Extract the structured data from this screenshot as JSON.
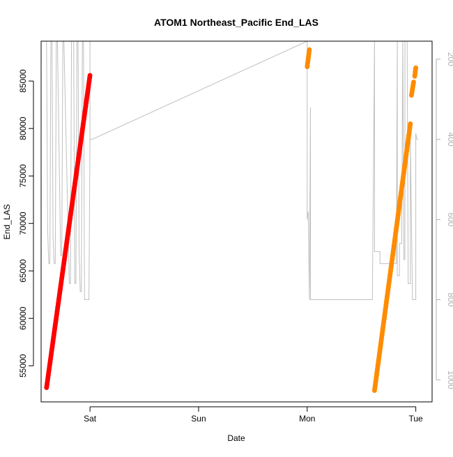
{
  "chart_data": {
    "type": "scatter",
    "title": "ATOM1 Northeast_Pacific End_LAS",
    "xlabel": "Date",
    "ylabel": "End_LAS",
    "x_ticks": [
      "Sat",
      "Sun",
      "Mon",
      "Tue"
    ],
    "x_tick_positions": [
      1,
      2,
      3,
      4
    ],
    "xlim": [
      0.55,
      4.15
    ],
    "y_ticks": [
      55000,
      60000,
      65000,
      70000,
      75000,
      80000,
      85000
    ],
    "y_tick_labels": [
      "55000",
      "60000",
      "65000",
      "70000",
      "75000",
      "80000",
      "85000"
    ],
    "ylim": [
      51200,
      89200
    ],
    "y2_ticks": [
      200,
      400,
      600,
      800,
      1000
    ],
    "y2_tick_labels": [
      "200",
      "400",
      "600",
      "800",
      "1000"
    ],
    "y2_lim": [
      155,
      1055
    ],
    "colors": {
      "series_1": "#ff0000",
      "series_2": "#ff8c00",
      "depth_line": "#bfbfbf"
    },
    "series": [
      {
        "color": "#ff0000",
        "segments": [
          {
            "x_start": 0.6,
            "y_start": 52700,
            "x_end": 1.0,
            "y_end": 85600
          }
        ]
      },
      {
        "color": "#ff8c00",
        "segments": [
          {
            "x_start": 3.0,
            "y_start": 86500,
            "x_end": 3.02,
            "y_end": 88300
          },
          {
            "x_start": 3.62,
            "y_start": 52400,
            "x_end": 3.95,
            "y_end": 80500
          },
          {
            "x_start": 3.96,
            "y_start": 83500,
            "x_end": 3.98,
            "y_end": 84900
          },
          {
            "x_start": 3.99,
            "y_start": 85500,
            "x_end": 4.0,
            "y_end": 86400
          }
        ]
      }
    ],
    "depth_line_axis": "right",
    "depth_line": [
      [
        0.6,
        155
      ],
      [
        0.61,
        620
      ],
      [
        0.62,
        710
      ],
      [
        0.63,
        710
      ],
      [
        0.64,
        155
      ],
      [
        0.65,
        155
      ],
      [
        0.66,
        640
      ],
      [
        0.67,
        710
      ],
      [
        0.68,
        710
      ],
      [
        0.69,
        155
      ],
      [
        0.7,
        155
      ],
      [
        0.73,
        690
      ],
      [
        0.74,
        690
      ],
      [
        0.75,
        155
      ],
      [
        0.76,
        155
      ],
      [
        0.8,
        650
      ],
      [
        0.81,
        760
      ],
      [
        0.82,
        760
      ],
      [
        0.83,
        155
      ],
      [
        0.85,
        155
      ],
      [
        0.86,
        760
      ],
      [
        0.87,
        760
      ],
      [
        0.88,
        155
      ],
      [
        0.89,
        155
      ],
      [
        0.9,
        680
      ],
      [
        0.91,
        780
      ],
      [
        0.92,
        780
      ],
      [
        0.93,
        155
      ],
      [
        0.94,
        155
      ],
      [
        0.95,
        800
      ],
      [
        0.99,
        800
      ],
      [
        1.0,
        400
      ],
      [
        1.0,
        155
      ],
      [
        1.0,
        400
      ],
      [
        1.02,
        400
      ],
      [
        3.0,
        155
      ],
      [
        3.0,
        600
      ],
      [
        3.01,
        580
      ],
      [
        3.02,
        800
      ],
      [
        3.03,
        320
      ],
      [
        3.03,
        800
      ],
      [
        3.6,
        800
      ],
      [
        3.62,
        155
      ],
      [
        3.62,
        680
      ],
      [
        3.67,
        680
      ],
      [
        3.67,
        710
      ],
      [
        3.82,
        710
      ],
      [
        3.83,
        155
      ],
      [
        3.83,
        740
      ],
      [
        3.85,
        740
      ],
      [
        3.85,
        660
      ],
      [
        3.87,
        660
      ],
      [
        3.88,
        155
      ],
      [
        3.89,
        700
      ],
      [
        3.9,
        700
      ],
      [
        3.9,
        155
      ],
      [
        3.92,
        155
      ],
      [
        3.93,
        760
      ],
      [
        3.95,
        760
      ],
      [
        3.95,
        400
      ],
      [
        3.97,
        800
      ],
      [
        4.0,
        800
      ],
      [
        4.0,
        385
      ],
      [
        4.01,
        400
      ],
      [
        4.02,
        400
      ]
    ]
  }
}
